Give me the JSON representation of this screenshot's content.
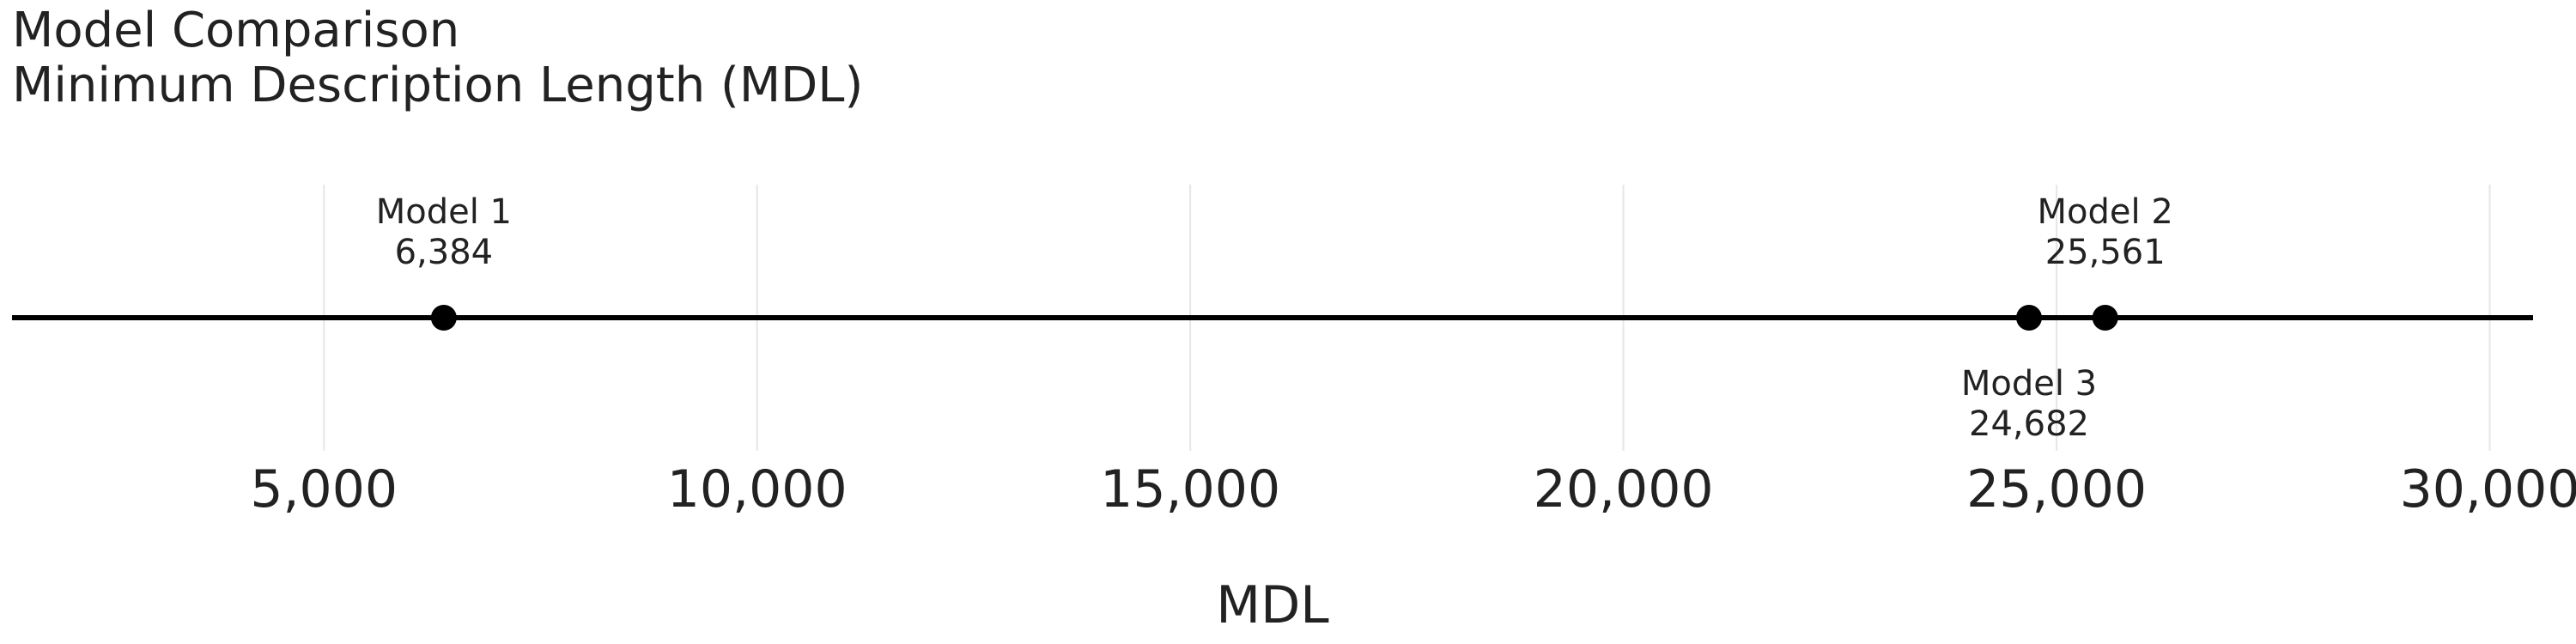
{
  "chart_data": {
    "type": "scatter",
    "title": "Model Comparison",
    "subtitle": "Minimum Description Length (MDL)",
    "xlabel": "MDL",
    "ylabel": "",
    "xlim": [
      1400,
      30500
    ],
    "ticks": [
      5000,
      10000,
      15000,
      20000,
      25000,
      30000
    ],
    "tick_labels": [
      "5,000",
      "10,000",
      "15,000",
      "20,000",
      "25,000",
      "30,000"
    ],
    "grid": true,
    "points": [
      {
        "name": "Model 1",
        "value": 6384,
        "value_label": "6,384",
        "label_side": "above"
      },
      {
        "name": "Model 2",
        "value": 25561,
        "value_label": "25,561",
        "label_side": "above"
      },
      {
        "name": "Model 3",
        "value": 24682,
        "value_label": "24,682",
        "label_side": "below"
      }
    ]
  }
}
